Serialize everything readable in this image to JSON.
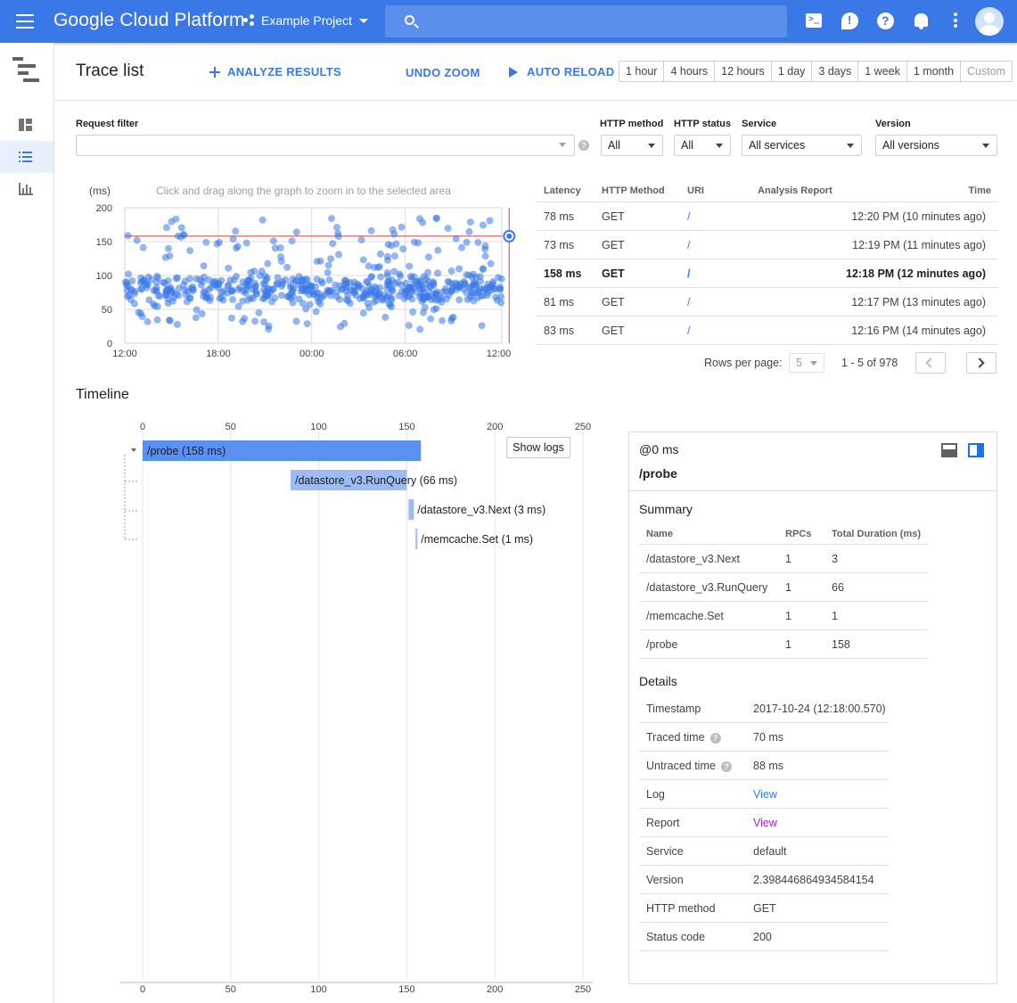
{
  "topbar": {
    "brand": "Google Cloud Platform",
    "project": "Example Project",
    "search_placeholder": "",
    "icons": [
      "menu-icon",
      "project-dots-icon",
      "search-icon",
      "terminal-icon",
      "alert-icon",
      "help-icon",
      "bell-icon",
      "more-vert-icon",
      "avatar"
    ]
  },
  "leftnav": {
    "items": [
      {
        "icon": "dashboard-icon",
        "active": false
      },
      {
        "icon": "trace-list-icon",
        "active": true
      },
      {
        "icon": "analysis-chart-icon",
        "active": false
      }
    ]
  },
  "header": {
    "title": "Trace list",
    "analyze_label": "ANALYZE RESULTS",
    "undo_zoom_label": "UNDO ZOOM",
    "auto_reload_label": "AUTO RELOAD",
    "time_ranges": [
      "1 hour",
      "4 hours",
      "12 hours",
      "1 day",
      "3 days",
      "1 week",
      "1 month",
      "Custom"
    ]
  },
  "filters": {
    "request_filter_label": "Request filter",
    "request_filter_value": "",
    "http_method_label": "HTTP method",
    "http_method_value": "All",
    "http_status_label": "HTTP status",
    "http_status_value": "All",
    "service_label": "Service",
    "service_value": "All services",
    "version_label": "Version",
    "version_value": "All versions"
  },
  "chart_data": {
    "type": "scatter",
    "title": "",
    "hint": "Click and drag along the graph to zoom in to the selected area",
    "ylabel": "(ms)",
    "xlabel": "",
    "ylim": [
      0,
      200
    ],
    "yticks": [
      "200",
      "150",
      "100",
      "50",
      "0"
    ],
    "xticks": [
      "12:00",
      "18:00",
      "00:00",
      "06:00",
      "12:00"
    ],
    "x_range_hours": [
      0,
      24.2
    ],
    "distribution": {
      "n": 978,
      "core_band_ms": [
        50,
        110
      ],
      "outlier_band_ms": [
        20,
        185
      ]
    },
    "selected_point": {
      "x_hours": 24.1,
      "y": 158
    },
    "point_color": "#3b78e7",
    "selection_line_color": "#e53935"
  },
  "traces": {
    "headers": {
      "latency": "Latency",
      "method": "HTTP Method",
      "uri": "URI",
      "analysis": "Analysis Report",
      "time": "Time"
    },
    "rows": [
      {
        "latency": "78 ms",
        "method": "GET",
        "uri": "/",
        "time": "12:20 PM  (10 minutes ago)"
      },
      {
        "latency": "73 ms",
        "method": "GET",
        "uri": "/",
        "time": "12:19 PM  (11 minutes ago)"
      },
      {
        "latency": "158 ms",
        "method": "GET",
        "uri": "/",
        "time": "12:18 PM  (12 minutes ago)"
      },
      {
        "latency": "81 ms",
        "method": "GET",
        "uri": "/",
        "time": "12:17 PM  (13 minutes ago)"
      },
      {
        "latency": "83 ms",
        "method": "GET",
        "uri": "/",
        "time": "12:16 PM  (14 minutes ago)"
      }
    ],
    "selected_index": 2,
    "rows_per_page_label": "Rows per page:",
    "rows_per_page_value": "5",
    "range_label": "1 - 5 of 978"
  },
  "timeline": {
    "title": "Timeline",
    "axis_ticks": [
      "0",
      "50",
      "100",
      "150",
      "200",
      "250"
    ],
    "axis_max": 250,
    "show_logs_label": "Show logs",
    "spans": [
      {
        "label": "/probe (158 ms)",
        "start": 0,
        "duration": 158,
        "level": 0
      },
      {
        "label": "/datastore_v3.RunQuery (66 ms)",
        "start": 84,
        "duration": 66,
        "level": 1
      },
      {
        "label": "/datastore_v3.Next (3 ms)",
        "start": 151,
        "duration": 3,
        "level": 1
      },
      {
        "label": "/memcache.Set (1 ms)",
        "start": 155,
        "duration": 1,
        "level": 1
      }
    ],
    "bar_color_root": "#5b8ff0",
    "bar_color_child": "#9bbcf5"
  },
  "detail": {
    "offset": "@0 ms",
    "span_name": "/probe",
    "summary_title": "Summary",
    "summary_headers": {
      "name": "Name",
      "rpcs": "RPCs",
      "duration": "Total Duration (ms)"
    },
    "summary_rows": [
      {
        "name": "/datastore_v3.Next",
        "rpcs": "1",
        "duration": "3"
      },
      {
        "name": "/datastore_v3.RunQuery",
        "rpcs": "1",
        "duration": "66"
      },
      {
        "name": "/memcache.Set",
        "rpcs": "1",
        "duration": "1"
      },
      {
        "name": "/probe",
        "rpcs": "1",
        "duration": "158"
      }
    ],
    "details_title": "Details",
    "timestamp_label": "Timestamp",
    "timestamp": "2017-10-24 (12:18:00.570)",
    "traced_label": "Traced time",
    "traced": "70 ms",
    "untraced_label": "Untraced time",
    "untraced": "88 ms",
    "log_label": "Log",
    "log_link": "View",
    "report_label": "Report",
    "report_link": "View",
    "service_label": "Service",
    "service": "default",
    "version_label": "Version",
    "version": "2.398446864934584154",
    "method_label": "HTTP method",
    "method": "GET",
    "status_label": "Status code",
    "status": "200"
  }
}
